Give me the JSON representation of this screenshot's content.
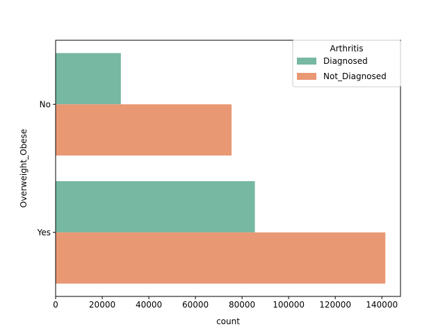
{
  "chart_data": {
    "type": "bar",
    "orientation": "horizontal",
    "categories": [
      "No",
      "Yes"
    ],
    "series": [
      {
        "name": "Diagnosed",
        "values": [
          28000,
          85500
        ],
        "color": "#76b8a1"
      },
      {
        "name": "Not_Diagnosed",
        "values": [
          75500,
          141500
        ],
        "color": "#e99874"
      }
    ],
    "xlabel": "count",
    "ylabel": "Overweight_Obese",
    "xlim": [
      0,
      148000
    ],
    "xticks": [
      0,
      20000,
      40000,
      60000,
      80000,
      100000,
      120000,
      140000
    ],
    "xtick_labels": [
      "0",
      "20000",
      "40000",
      "60000",
      "80000",
      "100000",
      "120000",
      "140000"
    ],
    "grid": false,
    "legend": {
      "title": "Arthritis",
      "placement": "top-right"
    }
  }
}
